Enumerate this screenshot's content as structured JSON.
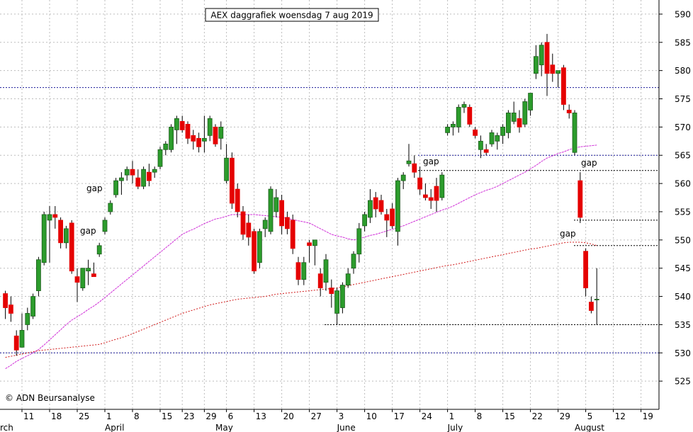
{
  "chart_data": {
    "type": "candlestick",
    "title": "AEX daggrafiek woensdag 7 aug 2019",
    "source": "© ADN Beursanalyse",
    "categories": [
      null,
      null,
      null,
      "11",
      null,
      null,
      null,
      null,
      "18",
      null,
      null,
      null,
      null,
      "25",
      null,
      null,
      null,
      null,
      "1",
      null,
      null,
      null,
      null,
      "8",
      null,
      null,
      null,
      null,
      "15",
      null,
      null,
      null,
      "23",
      null,
      null,
      null,
      "29",
      null,
      null,
      null,
      "6",
      null,
      null,
      null,
      null,
      "13",
      null,
      null,
      null,
      null,
      "20",
      null,
      null,
      null,
      null,
      "27",
      null,
      null,
      null,
      null,
      "3",
      null,
      null,
      null,
      null,
      "10",
      null,
      null,
      null,
      null,
      "17",
      null,
      null,
      null,
      null,
      "24",
      null,
      null,
      null,
      null,
      "1",
      null,
      null,
      null,
      null,
      "8",
      null,
      null,
      null,
      null,
      "15",
      null,
      null,
      null,
      null,
      "22",
      null,
      null,
      null,
      null,
      "29",
      null,
      null,
      null,
      null,
      "5",
      null,
      null,
      null,
      null,
      "12",
      null,
      null,
      null,
      null,
      "19",
      null,
      null,
      null
    ],
    "months": [
      "rch",
      null,
      null,
      null,
      null,
      null,
      null,
      null,
      null,
      null,
      null,
      null,
      null,
      null,
      null,
      null,
      null,
      null,
      "April",
      null,
      null,
      null,
      null,
      null,
      null,
      null,
      null,
      null,
      null,
      null,
      null,
      null,
      null,
      null,
      null,
      null,
      null,
      null,
      "May",
      null,
      null,
      null,
      null,
      null,
      null,
      null,
      null,
      null,
      null,
      null,
      null,
      null,
      null,
      null,
      null,
      null,
      null,
      null,
      null,
      null,
      "June",
      null,
      null,
      null,
      null,
      null,
      null,
      null,
      null,
      null,
      null,
      null,
      null,
      null,
      null,
      null,
      null,
      null,
      null,
      null,
      "July",
      null,
      null,
      null,
      null,
      null,
      null,
      null,
      null,
      null,
      null,
      null,
      null,
      null,
      null,
      null,
      null,
      null,
      null,
      null,
      null,
      null,
      null,
      "August",
      null,
      null,
      null,
      null,
      null,
      null,
      null,
      null,
      null,
      null,
      null,
      null,
      null,
      null,
      null
    ],
    "open": [
      540.5,
      538.5,
      533,
      531,
      535,
      536.5,
      541,
      546,
      553.5,
      554.5,
      553.5,
      549.5,
      553,
      543.5,
      541.5,
      544.5,
      544,
      547.5,
      551.5,
      555,
      558,
      560.5,
      561.5,
      562.5,
      561,
      559.5,
      562,
      562,
      563,
      566,
      566,
      569.5,
      571,
      570.5,
      568.5,
      568,
      567.5,
      568.5,
      570,
      568,
      560.5,
      564.5,
      559,
      555,
      553,
      551.5,
      546,
      552,
      551.5,
      555,
      557,
      554,
      553.5,
      546,
      543,
      549.5,
      549,
      544,
      542.5,
      541.5,
      537,
      538,
      542,
      545,
      547.5,
      552.5,
      554,
      557.5,
      557,
      554.5,
      555.5,
      551.5,
      560.5,
      563.5,
      563.5,
      561,
      558,
      557.5,
      559.5,
      557.5,
      569,
      570,
      570,
      573.5,
      573.5,
      569.5,
      566,
      566,
      567,
      567.5,
      568.5,
      569,
      571,
      571.5,
      570.5,
      573,
      579.5,
      581,
      585,
      581,
      579.5,
      580.5,
      573,
      565.5,
      560.5,
      548,
      539,
      539.5,
      null,
      null,
      null,
      null,
      null,
      null,
      null,
      null,
      null,
      null,
      null
    ],
    "high": [
      541,
      540,
      534,
      537,
      538,
      540.5,
      547,
      555,
      556,
      556,
      554,
      552.5,
      553.5,
      545,
      545,
      546.5,
      546,
      549.5,
      554,
      557,
      561,
      562,
      563,
      564,
      562.5,
      563,
      563.5,
      563,
      566.5,
      567.5,
      570.5,
      572,
      572,
      571,
      569.5,
      569,
      572,
      572,
      570.5,
      571,
      567,
      565.5,
      560,
      556,
      554.5,
      552,
      552,
      554,
      559.5,
      559,
      558,
      555,
      554.5,
      547,
      547,
      550,
      550,
      545,
      547.5,
      543,
      541.5,
      542.5,
      545,
      548,
      553,
      555,
      559,
      558.5,
      558,
      555.5,
      556.5,
      561,
      562,
      567,
      565,
      563,
      560,
      559,
      561,
      562,
      570.5,
      571,
      574,
      574.5,
      574,
      570,
      568.5,
      567,
      569.5,
      569,
      570.5,
      573,
      574.5,
      573,
      575,
      576,
      584.5,
      585,
      586.5,
      583,
      580,
      581,
      574,
      573,
      562,
      548.5,
      540,
      545,
      null,
      null,
      null,
      null,
      null,
      null,
      null,
      null,
      null,
      null,
      null
    ],
    "low": [
      536,
      535.5,
      529.5,
      531,
      534,
      536,
      540,
      545.5,
      546,
      552,
      548.5,
      548.5,
      544,
      539,
      541,
      542,
      543.5,
      547,
      551,
      554.5,
      557.5,
      558,
      560.5,
      560,
      559,
      559,
      559.5,
      561,
      562.5,
      565,
      565.5,
      567,
      569,
      567,
      566,
      565.5,
      565.5,
      567.5,
      566.5,
      566,
      560,
      555.5,
      554,
      550,
      549,
      544,
      545,
      550.5,
      551,
      554,
      551,
      551,
      547.5,
      542,
      542,
      546,
      545.5,
      540,
      541,
      538,
      535,
      537,
      541.5,
      544,
      546,
      551.5,
      553,
      554,
      554.5,
      550.5,
      552,
      549,
      559,
      563,
      561,
      558,
      557,
      555.5,
      555,
      557,
      568.5,
      568.5,
      569,
      572.5,
      570,
      568,
      564.5,
      565,
      566.5,
      566,
      567,
      568,
      570.5,
      569,
      570,
      572,
      578.5,
      579,
      575.5,
      578,
      577,
      573,
      571.5,
      565,
      553,
      540,
      537,
      535,
      null,
      null,
      null,
      null,
      null,
      null,
      null,
      null,
      null,
      null,
      null
    ],
    "close": [
      538,
      537,
      530.5,
      534,
      537,
      540,
      546.5,
      554.5,
      554.5,
      554,
      549.5,
      552,
      544.5,
      542.5,
      545,
      545,
      543.5,
      549,
      553.5,
      556.5,
      560.5,
      561,
      562.5,
      561.5,
      559.5,
      562.5,
      560.5,
      562.5,
      566,
      567,
      570,
      571.5,
      569.5,
      568,
      567.5,
      566.5,
      568,
      571.5,
      567,
      570,
      564.5,
      556.5,
      555,
      551,
      550.5,
      544.5,
      551.5,
      553.5,
      559,
      557.5,
      552.5,
      552,
      548.5,
      543,
      546,
      549,
      550,
      541.5,
      546.5,
      540.5,
      541,
      542,
      544,
      547.5,
      552,
      554.5,
      557,
      555.5,
      555,
      553.5,
      552.5,
      560.5,
      561.5,
      564,
      562,
      559,
      557.5,
      557,
      557,
      561.5,
      570,
      570.5,
      573.5,
      574,
      570.5,
      568.5,
      567.5,
      565.5,
      569,
      568.5,
      570,
      572.5,
      572.5,
      570,
      574.5,
      576,
      582.5,
      584.5,
      579.5,
      579.5,
      580,
      574,
      572.5,
      572.5,
      554,
      541.5,
      537.5,
      539.5,
      null,
      null,
      null,
      null,
      null,
      null,
      null,
      null,
      null,
      null,
      null
    ],
    "up_color": "#2c9c2c",
    "down_color": "#e50000",
    "lines": [
      {
        "color": "#d030d8",
        "values": [
          527.2,
          527.8,
          528.5,
          529,
          529.5,
          530,
          530.6,
          531.4,
          532.3,
          533.2,
          534.1,
          535,
          535.8,
          536.4,
          537,
          537.7,
          538.3,
          539,
          539.8,
          540.6,
          541.4,
          542.2,
          543,
          543.8,
          544.6,
          545.4,
          546.2,
          547,
          547.8,
          548.6,
          549.4,
          550.2,
          551,
          551.5,
          551.9,
          552.4,
          552.9,
          553.3,
          553.7,
          553.9,
          554.2,
          554.5,
          554.5,
          554.5,
          554.5,
          554.5,
          554.4,
          554.3,
          554.2,
          554.1,
          554,
          553.8,
          553.6,
          553.4,
          553.2,
          553,
          552.5,
          552,
          551.5,
          551,
          550.7,
          550.5,
          550.2,
          550,
          550.2,
          550.5,
          550.8,
          551,
          551.3,
          551.6,
          551.9,
          552.2,
          552.5,
          552.9,
          553.3,
          553.7,
          554.1,
          554.5,
          554.9,
          555.3,
          555.6,
          556,
          556.5,
          557,
          557.5,
          558,
          558.4,
          558.8,
          559.1,
          559.5,
          560,
          560.5,
          561,
          561.5,
          562,
          562.6,
          563.2,
          563.9,
          564.5,
          564.9,
          565.3,
          565.6,
          566,
          566.3,
          566.5,
          566.6,
          566.7,
          566.8,
          null,
          null,
          null,
          null,
          null,
          null,
          null,
          null,
          null,
          null,
          null
        ]
      },
      {
        "color": "#d01818",
        "values": [
          529.2,
          529.4,
          529.6,
          529.8,
          530,
          530.2,
          530.4,
          530.5,
          530.6,
          530.7,
          530.8,
          530.9,
          531,
          531.1,
          531.2,
          531.3,
          531.4,
          531.5,
          531.8,
          532.1,
          532.4,
          532.7,
          533,
          533.4,
          533.8,
          534.2,
          534.6,
          535,
          535.4,
          535.8,
          536.2,
          536.6,
          537,
          537.3,
          537.6,
          537.9,
          538.2,
          538.5,
          538.7,
          538.9,
          539.1,
          539.3,
          539.5,
          539.6,
          539.7,
          539.8,
          539.9,
          540,
          540.2,
          540.4,
          540.5,
          540.6,
          540.7,
          540.8,
          540.9,
          541,
          541.1,
          541.2,
          541.3,
          541.4,
          541.5,
          541.7,
          541.9,
          542.1,
          542.3,
          542.5,
          542.7,
          542.9,
          543.1,
          543.3,
          543.5,
          543.7,
          543.9,
          544.1,
          544.3,
          544.5,
          544.7,
          544.9,
          545.1,
          545.3,
          545.5,
          545.6,
          545.8,
          546,
          546.2,
          546.4,
          546.6,
          546.8,
          547,
          547.2,
          547.4,
          547.6,
          547.8,
          548,
          548.2,
          548.4,
          548.5,
          548.7,
          548.9,
          549.1,
          549.3,
          549.5,
          549.6,
          549.6,
          549.6,
          549.5,
          549.3,
          549,
          null,
          null,
          null,
          null,
          null,
          null,
          null,
          null,
          null,
          null,
          null
        ]
      }
    ],
    "levels": [
      {
        "value": 577,
        "color": "#1a1a9a"
      },
      {
        "value": 530,
        "color": "#1a1a9a"
      },
      {
        "value": 565,
        "color": "#1a1a9a"
      },
      {
        "value": 562.3,
        "color": "#000000"
      },
      {
        "value": 553.5,
        "color": "#000000"
      },
      {
        "value": 549,
        "color": "#000000"
      },
      {
        "value": 535,
        "color": "#000000"
      }
    ],
    "annotations": [
      {
        "text": "gap",
        "color": "#b4b4b4"
      },
      {
        "text": "gap",
        "color": "#b4b4b4"
      },
      {
        "text": "gap",
        "color": "#000000"
      },
      {
        "text": "gap",
        "color": "#000000"
      },
      {
        "text": "gap",
        "color": "#000000"
      }
    ],
    "ylim": [
      520,
      592.5
    ],
    "yticks": [
      525,
      530,
      535,
      540,
      545,
      550,
      555,
      560,
      565,
      570,
      575,
      580,
      585,
      590
    ],
    "grid": true
  }
}
